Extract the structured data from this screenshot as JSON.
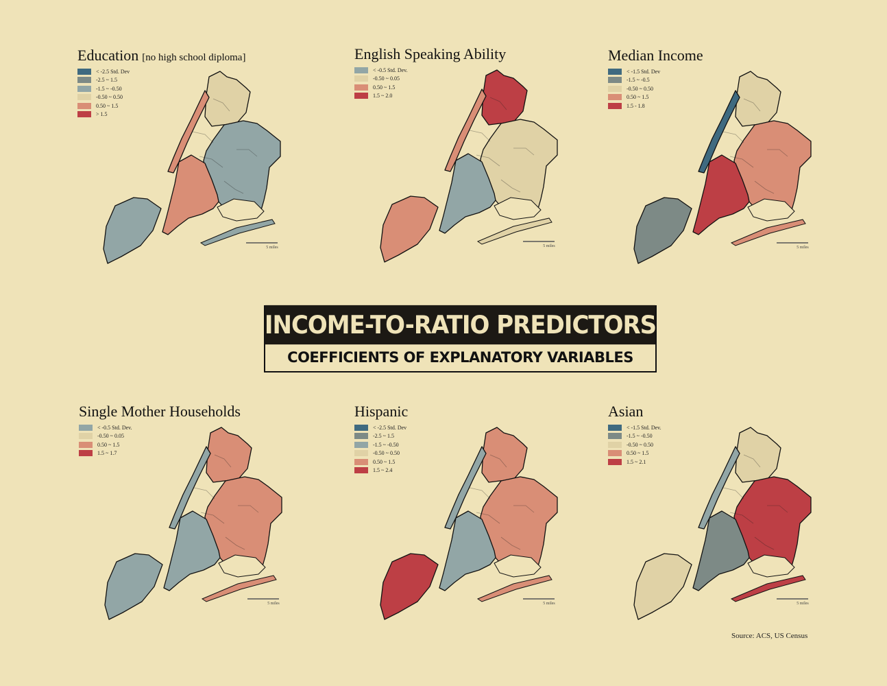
{
  "header": {
    "title": "INCOME-TO-RATIO PREDICTORS",
    "subtitle": "COEFFICIENTS OF EXPLANATORY VARIABLES"
  },
  "source": "Source: ACS, US Census",
  "palette": {
    "dark_blue": "#3f6a80",
    "slate": "#7d8a86",
    "gray_blue": "#92a6a6",
    "neutral": "#e0d2a6",
    "salmon": "#d98e76",
    "red": "#bd3f45",
    "background": "#efe3b8"
  },
  "panels": [
    {
      "title": "Education",
      "subtitle": "[no high school diploma]",
      "scale_label": "5 miles",
      "legend": [
        {
          "label": "< -2.5 Std. Dev",
          "color": "#3f6a80"
        },
        {
          "label": "-2.5 ~ 1.5",
          "color": "#7d8a86"
        },
        {
          "label": "-1.5 ~ -0.50",
          "color": "#92a6a6"
        },
        {
          "label": "-0.50 ~ 0.50",
          "color": "#e0d2a6"
        },
        {
          "label": "0.50 ~ 1.5",
          "color": "#d98e76"
        },
        {
          "label": "> 1.5",
          "color": "#bd3f45"
        }
      ],
      "regions": {
        "bronx": "#e0d2a6",
        "manhattan": "#d98e76",
        "queens": "#92a6a6",
        "brooklyn": "#d98e76",
        "staten": "#92a6a6"
      }
    },
    {
      "title": "English Speaking Ability",
      "subtitle": "",
      "scale_label": "5 miles",
      "legend": [
        {
          "label": "< -0.5 Std. Dev.",
          "color": "#92a6a6"
        },
        {
          "label": "-0.50 ~ 0.05",
          "color": "#e0d2a6"
        },
        {
          "label": "0.50 ~ 1.5",
          "color": "#d98e76"
        },
        {
          "label": "1.5 ~ 2.0",
          "color": "#bd3f45"
        }
      ],
      "regions": {
        "bronx": "#bd3f45",
        "manhattan": "#d98e76",
        "queens": "#e0d2a6",
        "brooklyn": "#92a6a6",
        "staten": "#d98e76"
      }
    },
    {
      "title": "Median Income",
      "subtitle": "",
      "scale_label": "5 miles",
      "legend": [
        {
          "label": "< -1.5 Std. Dev",
          "color": "#3f6a80"
        },
        {
          "label": "-1.5 ~ -0.5",
          "color": "#7d8a86"
        },
        {
          "label": "-0.50 ~ 0.50",
          "color": "#e0d2a6"
        },
        {
          "label": "0.50 ~ 1.5",
          "color": "#d98e76"
        },
        {
          "label": "1.5 - 1.8",
          "color": "#bd3f45"
        }
      ],
      "regions": {
        "bronx": "#e0d2a6",
        "manhattan": "#3f6a80",
        "queens": "#d98e76",
        "brooklyn": "#bd3f45",
        "staten": "#7d8a86"
      }
    },
    {
      "title": "Single Mother Households",
      "subtitle": "",
      "scale_label": "5 miles",
      "legend": [
        {
          "label": "< -0.5 Std. Dev.",
          "color": "#92a6a6"
        },
        {
          "label": "-0.50 ~ 0.05",
          "color": "#e0d2a6"
        },
        {
          "label": "0.50 ~ 1.5",
          "color": "#d98e76"
        },
        {
          "label": "1.5 ~ 1.7",
          "color": "#bd3f45"
        }
      ],
      "regions": {
        "bronx": "#d98e76",
        "manhattan": "#92a6a6",
        "queens": "#d98e76",
        "brooklyn": "#92a6a6",
        "staten": "#92a6a6"
      }
    },
    {
      "title": "Hispanic",
      "subtitle": "",
      "scale_label": "5 miles",
      "legend": [
        {
          "label": "< -2.5 Std. Dev",
          "color": "#3f6a80"
        },
        {
          "label": "-2.5 ~ 1.5",
          "color": "#7d8a86"
        },
        {
          "label": "-1.5 ~ -0.50",
          "color": "#92a6a6"
        },
        {
          "label": "-0.50 ~ 0.50",
          "color": "#e0d2a6"
        },
        {
          "label": "0.50 ~ 1.5",
          "color": "#d98e76"
        },
        {
          "label": "1.5 ~ 2.4",
          "color": "#bd3f45"
        }
      ],
      "regions": {
        "bronx": "#d98e76",
        "manhattan": "#92a6a6",
        "queens": "#d98e76",
        "brooklyn": "#92a6a6",
        "staten": "#bd3f45"
      }
    },
    {
      "title": "Asian",
      "subtitle": "",
      "scale_label": "5 miles",
      "legend": [
        {
          "label": "< -1.5 Std. Dev.",
          "color": "#3f6a80"
        },
        {
          "label": "-1.5 ~ -0.50",
          "color": "#7d8a86"
        },
        {
          "label": "-0.50 ~ 0.50",
          "color": "#e0d2a6"
        },
        {
          "label": "0.50 ~ 1.5",
          "color": "#d98e76"
        },
        {
          "label": "1.5 ~ 2.1",
          "color": "#bd3f45"
        }
      ],
      "regions": {
        "bronx": "#e0d2a6",
        "manhattan": "#92a6a6",
        "queens": "#bd3f45",
        "brooklyn": "#7d8a86",
        "staten": "#e0d2a6"
      }
    }
  ]
}
